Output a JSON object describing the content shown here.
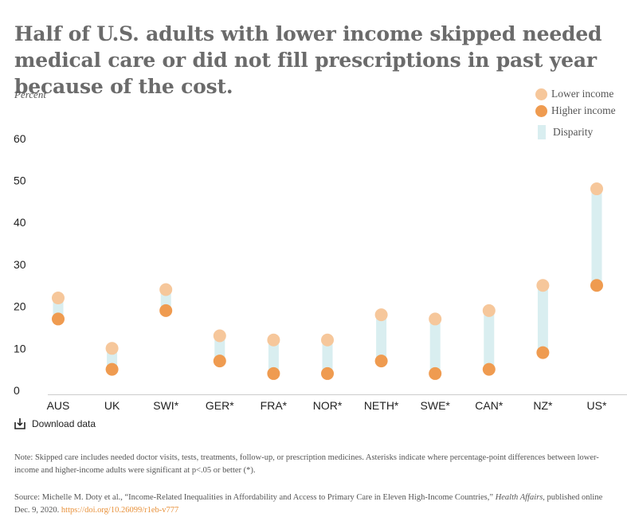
{
  "title": "Half of U.S. adults with lower income skipped needed medical care or did not fill prescriptions in past year because of the cost.",
  "legend": {
    "lower": "Lower income",
    "higher": "Higher income",
    "disparity": "Disparity"
  },
  "colors": {
    "lower": "#f6c79b",
    "higher": "#ef9b50",
    "disparity": "#d9eef0",
    "axis": "#cccccc",
    "link": "#e8913a"
  },
  "download_label": "Download data",
  "note": "Note: Skipped care includes needed doctor visits, tests, treatments, follow-up, or prescription medicines. Asterisks indicate where percentage-point differences between lower-income and higher-income adults were significant at p<.05 or better (*).",
  "source": {
    "prefix": "Source: Michelle M. Doty et al., “Income-Related Inequalities in Affordability and Access to Primary Care in Eleven High-Income Countries,” ",
    "journal": "Health Affairs",
    "suffix": ", published online Dec. 9, 2020. ",
    "link": "https://doi.org/10.26099/r1eb-v777"
  },
  "chart_data": {
    "type": "scatter",
    "ylabel": "Percent",
    "ylim": [
      0,
      60
    ],
    "yticks": [
      0,
      10,
      20,
      30,
      40,
      50,
      60
    ],
    "grid": false,
    "legend_position": "top-right",
    "categories": [
      "AUS",
      "UK",
      "SWI*",
      "GER*",
      "FRA*",
      "NOR*",
      "NETH*",
      "SWE*",
      "CAN*",
      "NZ*",
      "US*"
    ],
    "series": [
      {
        "name": "Lower income",
        "values": [
          22,
          10,
          24,
          13,
          12,
          12,
          18,
          17,
          19,
          25,
          48
        ]
      },
      {
        "name": "Higher income",
        "values": [
          17,
          5,
          19,
          7,
          4,
          4,
          7,
          4,
          5,
          9,
          25
        ]
      }
    ]
  }
}
